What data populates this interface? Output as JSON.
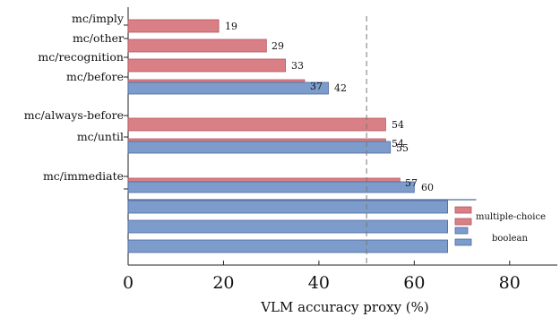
{
  "chart_data": {
    "type": "bar",
    "orientation": "horizontal",
    "xlabel": "VLM accuracy proxy (%)",
    "ylabel": "",
    "xlim": [
      0,
      90
    ],
    "xticks": [
      0,
      20,
      40,
      60,
      80
    ],
    "xtick_labels": [
      "0",
      "20",
      "40",
      "60",
      "80"
    ],
    "reference_line_x": 50,
    "grid": false,
    "legend_position": "right",
    "series": [
      {
        "name": "multiple-choice",
        "color": "#d97f86"
      },
      {
        "name": "boolean",
        "color": "#7d9ccc"
      }
    ],
    "legend_labels": [
      "multiple-choice",
      "boolean"
    ],
    "categories": [
      {
        "label": "mc/imply",
        "bars": [
          {
            "series": "multiple-choice",
            "value": 19,
            "value_label": "19"
          }
        ]
      },
      {
        "label": "mc/other",
        "bars": [
          {
            "series": "multiple-choice",
            "value": 29,
            "value_label": "29"
          }
        ]
      },
      {
        "label": "mc/recognition",
        "bars": [
          {
            "series": "multiple-choice",
            "value": 33,
            "value_label": "33"
          }
        ]
      },
      {
        "label": "mc/before",
        "bars": [
          {
            "series": "multiple-choice",
            "value": 37,
            "value_label": "37"
          },
          {
            "series": "boolean",
            "value": 42,
            "value_label": "42"
          }
        ]
      },
      {
        "label": "mc/always-before",
        "bars": [
          {
            "series": "multiple-choice",
            "value": 54,
            "value_label": "54"
          }
        ]
      },
      {
        "label": "mc/until",
        "bars": [
          {
            "series": "multiple-choice",
            "value": 54,
            "value_label": "54"
          },
          {
            "series": "boolean",
            "value": 55,
            "value_label": "55"
          }
        ]
      },
      {
        "label": "mc/immediate",
        "bars": [
          {
            "series": "multiple-choice",
            "value": 57,
            "value_label": "57"
          },
          {
            "series": "boolean",
            "value": 60,
            "value_label": "60"
          }
        ]
      }
    ],
    "unlabeled_bars": [
      {
        "series": "boolean",
        "value": 73
      },
      {
        "series": "boolean",
        "value": 67
      },
      {
        "series": "boolean",
        "value": 67
      },
      {
        "series": "boolean",
        "value": 67
      }
    ]
  }
}
